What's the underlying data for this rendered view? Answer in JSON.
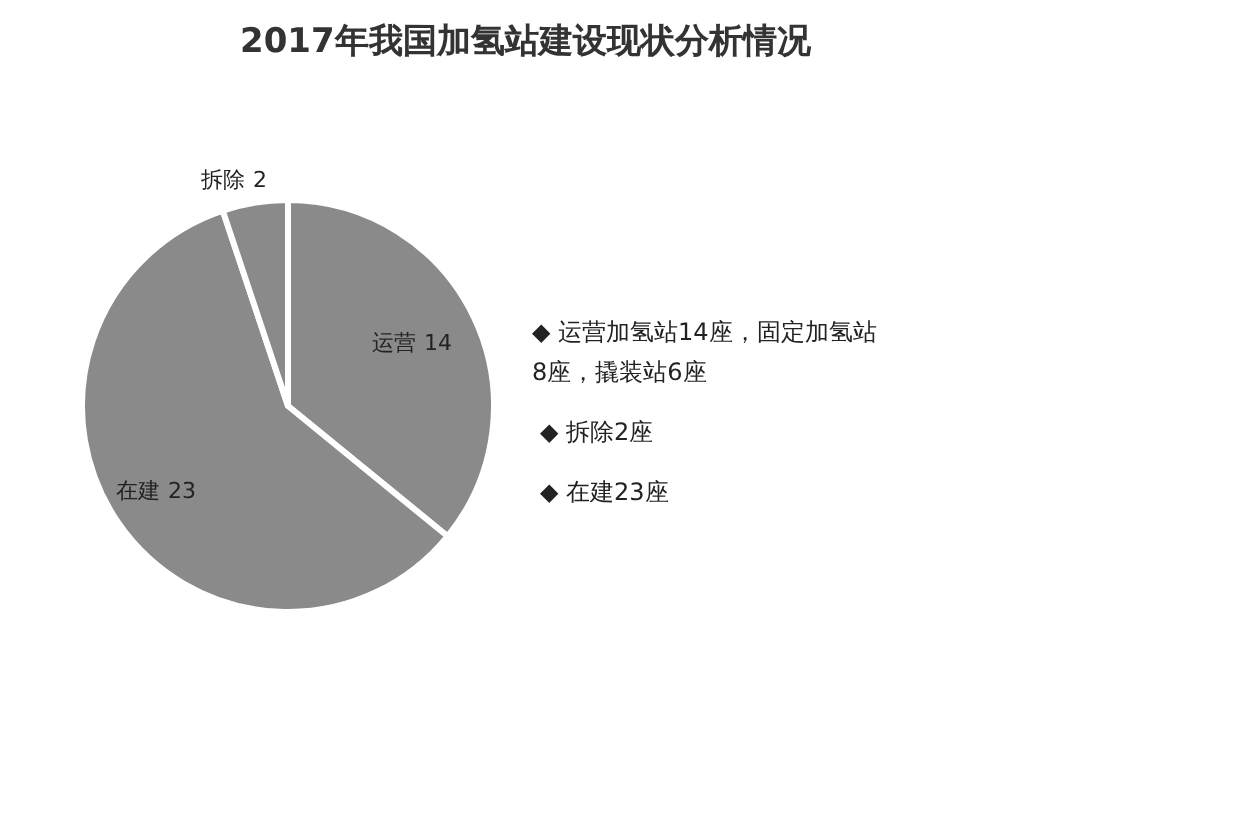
{
  "chart_data": {
    "type": "pie",
    "title": "2017年我国加氢站建设现状分析情况",
    "categories": [
      "运营",
      "在建",
      "拆除"
    ],
    "values": [
      14,
      23,
      2
    ],
    "colors": [
      "#8a8a8a",
      "#8a8a8a",
      "#8a8a8a"
    ],
    "data_labels": true,
    "legend": false,
    "annotations": [
      "◆ 运营加氢站14座，固定加氢站8座，撬装站6座",
      "◆ 拆除2座",
      "◆ 在建23座"
    ]
  }
}
